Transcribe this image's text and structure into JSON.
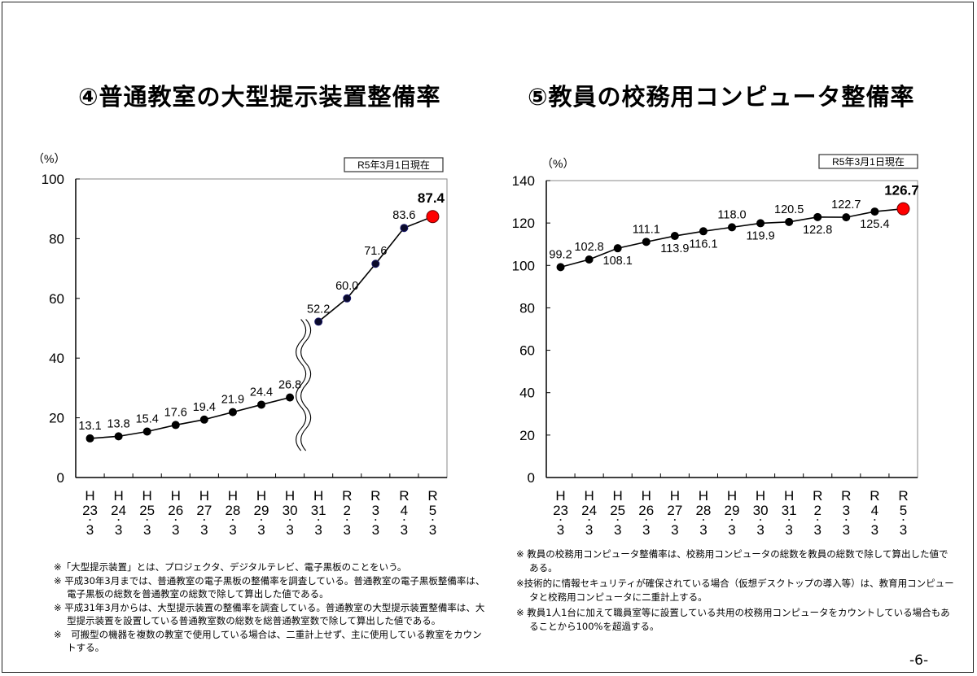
{
  "page_number": "-6-",
  "chart_data": [
    {
      "type": "line",
      "title": "④普通教室の大型提示装置整備率",
      "ylabel": "（%）",
      "as_of": "R5年3月1日現在",
      "ylim": [
        0,
        100
      ],
      "yticks": [
        0,
        20,
        40,
        60,
        80,
        100
      ],
      "categories": [
        [
          "H",
          "23",
          "3"
        ],
        [
          "H",
          "24",
          "3"
        ],
        [
          "H",
          "25",
          "3"
        ],
        [
          "H",
          "26",
          "3"
        ],
        [
          "H",
          "27",
          "3"
        ],
        [
          "H",
          "28",
          "3"
        ],
        [
          "H",
          "29",
          "3"
        ],
        [
          "H",
          "30",
          "3"
        ],
        [
          "H",
          "31",
          "3"
        ],
        [
          "R",
          "2",
          "3"
        ],
        [
          "R",
          "3",
          "3"
        ],
        [
          "R",
          "4",
          "3"
        ],
        [
          "R",
          "5",
          "3"
        ]
      ],
      "values": [
        13.1,
        13.8,
        15.4,
        17.6,
        19.4,
        21.9,
        24.4,
        26.8,
        52.2,
        60.0,
        71.6,
        83.6,
        87.4
      ],
      "labels": [
        "13.1",
        "13.8",
        "15.4",
        "17.6",
        "19.4",
        "21.9",
        "24.4",
        "26.8",
        "52.2",
        "60.0",
        "71.6",
        "83.6",
        "87.4"
      ],
      "label_positions": [
        "above",
        "above",
        "above",
        "above",
        "above",
        "above",
        "above",
        "above",
        "above",
        "above",
        "above",
        "above",
        "above"
      ],
      "axis_break_between": [
        "H30.3",
        "H31.3"
      ],
      "segments": [
        [
          0,
          7
        ],
        [
          8,
          12
        ]
      ],
      "highlight_last": true,
      "colors": {
        "line": "#000000",
        "marker_early": "#000000",
        "marker_late": "#0a0a2a",
        "highlight": "#ff0000"
      }
    },
    {
      "type": "line",
      "title": "⑤教員の校務用コンピュータ整備率",
      "ylabel": "（%）",
      "as_of": "R5年3月1日現在",
      "ylim": [
        0,
        140
      ],
      "yticks": [
        0,
        20,
        40,
        60,
        80,
        100,
        120,
        140
      ],
      "categories": [
        [
          "H",
          "23",
          "3"
        ],
        [
          "H",
          "24",
          "3"
        ],
        [
          "H",
          "25",
          "3"
        ],
        [
          "H",
          "26",
          "3"
        ],
        [
          "H",
          "27",
          "3"
        ],
        [
          "H",
          "28",
          "3"
        ],
        [
          "H",
          "29",
          "3"
        ],
        [
          "H",
          "30",
          "3"
        ],
        [
          "H",
          "31",
          "3"
        ],
        [
          "R",
          "2",
          "3"
        ],
        [
          "R",
          "3",
          "3"
        ],
        [
          "R",
          "4",
          "3"
        ],
        [
          "R",
          "5",
          "3"
        ]
      ],
      "values": [
        99.2,
        102.8,
        108.1,
        111.1,
        113.9,
        116.1,
        118.0,
        119.9,
        120.5,
        122.8,
        122.7,
        125.4,
        126.7
      ],
      "labels": [
        "99.2",
        "102.8",
        "108.1",
        "111.1",
        "113.9",
        "116.1",
        "118.0",
        "119.9",
        "120.5",
        "122.8",
        "122.7",
        "125.4",
        "126.7"
      ],
      "label_positions": [
        "above",
        "above",
        "below",
        "above",
        "below",
        "below",
        "above",
        "below",
        "above",
        "below",
        "above",
        "below",
        "above"
      ],
      "segments": [
        [
          0,
          12
        ]
      ],
      "highlight_last": true,
      "colors": {
        "line": "#000000",
        "marker_early": "#000000",
        "marker_late": "#000000",
        "highlight": "#ff0000"
      }
    }
  ],
  "notes_left": [
    "※「大型提示装置」とは、プロジェクタ、デジタルテレビ、電子黒板のことをいう。",
    "※ 平成30年3月までは、普通教室の電子黒板の整備率を調査している。普通教室の電子黒板整備率は、電子黒板の総数を普通教室の総数で除して算出した値である。",
    "※ 平成31年3月からは、大型提示装置の整備率を調査している。普通教室の大型提示装置整備率は、大型提示装置を設置している普通教室数の総数を総普通教室数で除して算出した値である。",
    "※　可搬型の機器を複数の教室で使用している場合は、二重計上せず、主に使用している教室をカウントする。"
  ],
  "notes_right": [
    "※ 教員の校務用コンピュータ整備率は、校務用コンピュータの総数を教員の総数で除して算出した値である。",
    "※技術的に情報セキュリティが確保されている場合（仮想デスクトップの導入等）は、教育用コンピュータと校務用コンピュータに二重計上する。",
    "※ 教員1人1台に加えて職員室等に設置している共用の校務用コンピュータをカウントしている場合もあることから100%を超過する。"
  ]
}
